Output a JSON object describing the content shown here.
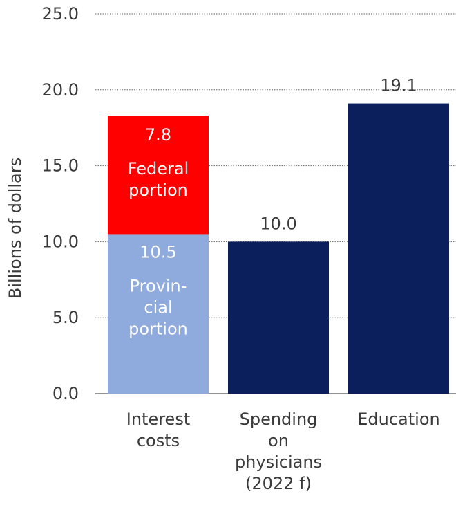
{
  "chart_data": {
    "type": "bar",
    "stacked": true,
    "ylabel": "Billions of dollars",
    "ylim": [
      0,
      25
    ],
    "yticks": [
      0,
      5,
      10,
      15,
      20,
      25
    ],
    "ytick_labels": [
      "0.0",
      "5.0",
      "10.0",
      "15.0",
      "20.0",
      "25.0"
    ],
    "grid": "horizontal-dotted",
    "categories": [
      {
        "label_lines": [
          "Interest",
          "costs"
        ]
      },
      {
        "label_lines": [
          "Spending",
          "on",
          "physicians",
          "(2022 f)"
        ]
      },
      {
        "label_lines": [
          "Education"
        ]
      }
    ],
    "bars": [
      {
        "segments": [
          {
            "value": 10.5,
            "value_label": "10.5",
            "label_lines": [
              "Provin-",
              "cial",
              "portion"
            ],
            "color": "#8faadc",
            "label_color": "#ffffff"
          },
          {
            "value": 7.8,
            "value_label": "7.8",
            "label_lines": [
              "Federal",
              "portion"
            ],
            "color": "#ff0000",
            "label_color": "#ffffff"
          }
        ]
      },
      {
        "segments": [
          {
            "value": 10.0,
            "value_label": "10.0",
            "label_lines": [],
            "color": "#0b1f5c",
            "label_color": "#3a3a3a",
            "label_above": true
          }
        ]
      },
      {
        "segments": [
          {
            "value": 19.1,
            "value_label": "19.1",
            "label_lines": [],
            "color": "#0b1f5c",
            "label_color": "#3a3a3a",
            "label_above": true
          }
        ]
      }
    ]
  }
}
